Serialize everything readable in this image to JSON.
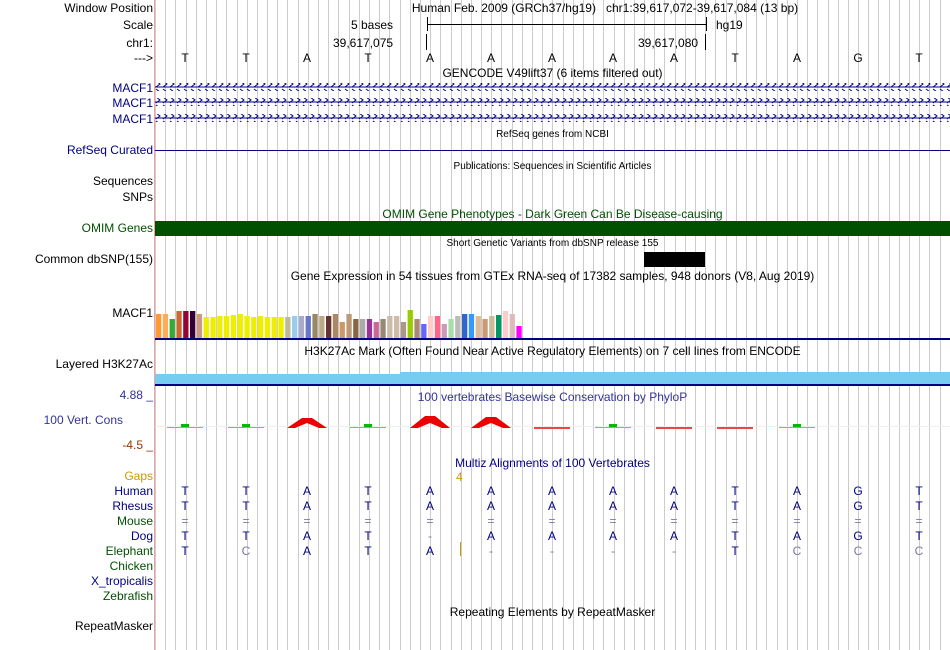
{
  "header": {
    "window_position_label": "Window Position",
    "scale_label": "Scale",
    "chr_label": "chr1:",
    "arrow_label": "--->",
    "assembly": "Human Feb. 2009 (GRCh37/hg19)",
    "position": "chr1:39,617,072-39,617,084 (13 bp)",
    "scale_text": "5 bases",
    "scale_assembly": "hg19",
    "coord_left": "39,617,075",
    "coord_right": "39,617,080",
    "bases": [
      "T",
      "T",
      "A",
      "T",
      "A",
      "A",
      "A",
      "A",
      "A",
      "T",
      "A",
      "G",
      "T"
    ]
  },
  "tracks": {
    "gencode": {
      "title": "GENCODE V49lift37 (6 items filtered out)",
      "rows": [
        "MACF1",
        "MACF1",
        "MACF1"
      ]
    },
    "refseq": {
      "title": "RefSeq genes from NCBI",
      "label": "RefSeq Curated"
    },
    "publications": {
      "title": "Publications: Sequences in Scientific Articles",
      "labels": [
        "Sequences",
        "SNPs"
      ]
    },
    "omim": {
      "title": "OMIM Gene Phenotypes - Dark Green Can Be Disease-causing",
      "label": "OMIM Genes",
      "color": "#005000"
    },
    "dbsnp": {
      "title": "Short Genetic Variants from dbSNP release 155",
      "label": "Common dbSNP(155)"
    },
    "gtex": {
      "title": "Gene Expression in 54 tissues from GTEx RNA-seq of 17382 samples, 948 donors (V8, Aug 2019)",
      "label": "MACF1",
      "bars": [
        {
          "v": 0.45,
          "c": "#ff9933"
        },
        {
          "v": 0.45,
          "c": "#ffaa55"
        },
        {
          "v": 0.35,
          "c": "#33aa33"
        },
        {
          "v": 0.5,
          "c": "#cc6633"
        },
        {
          "v": 0.5,
          "c": "#990033"
        },
        {
          "v": 0.5,
          "c": "#330033"
        },
        {
          "v": 0.45,
          "c": "#cc9988"
        },
        {
          "v": 0.38,
          "c": "#eeee00"
        },
        {
          "v": 0.38,
          "c": "#eeee00"
        },
        {
          "v": 0.4,
          "c": "#eeee00"
        },
        {
          "v": 0.4,
          "c": "#eeee00"
        },
        {
          "v": 0.42,
          "c": "#eeee00"
        },
        {
          "v": 0.45,
          "c": "#eeee00"
        },
        {
          "v": 0.4,
          "c": "#eeee00"
        },
        {
          "v": 0.38,
          "c": "#eeee00"
        },
        {
          "v": 0.4,
          "c": "#eeee00"
        },
        {
          "v": 0.38,
          "c": "#eeee00"
        },
        {
          "v": 0.38,
          "c": "#eeee00"
        },
        {
          "v": 0.38,
          "c": "#eeee00"
        },
        {
          "v": 0.38,
          "c": "#bbbb99"
        },
        {
          "v": 0.4,
          "c": "#99ccee"
        },
        {
          "v": 0.4,
          "c": "#aaaacc"
        },
        {
          "v": 0.4,
          "c": "#6677cc"
        },
        {
          "v": 0.45,
          "c": "#998866"
        },
        {
          "v": 0.4,
          "c": "#bbaa88"
        },
        {
          "v": 0.4,
          "c": "#663333"
        },
        {
          "v": 0.45,
          "c": "#aa8866"
        },
        {
          "v": 0.3,
          "c": "#cc9966"
        },
        {
          "v": 0.45,
          "c": "#bb9977"
        },
        {
          "v": 0.35,
          "c": "#886644"
        },
        {
          "v": 0.35,
          "c": "#aaaaaa"
        },
        {
          "v": 0.35,
          "c": "#993399"
        },
        {
          "v": 0.3,
          "c": "#cc6699"
        },
        {
          "v": 0.35,
          "c": "#998877"
        },
        {
          "v": 0.4,
          "c": "#ccbbaa"
        },
        {
          "v": 0.4,
          "c": "#ccbbaa"
        },
        {
          "v": 0.3,
          "c": "#aa9988"
        },
        {
          "v": 0.52,
          "c": "#99cc00"
        },
        {
          "v": 0.35,
          "c": "#aa8877"
        },
        {
          "v": 0.25,
          "c": "#6666ff"
        },
        {
          "v": 0.4,
          "c": "#ffcccc"
        },
        {
          "v": 0.4,
          "c": "#ff6688"
        },
        {
          "v": 0.25,
          "c": "#cc99bb"
        },
        {
          "v": 0.35,
          "c": "#aaddaa"
        },
        {
          "v": 0.4,
          "c": "#bbbbbb"
        },
        {
          "v": 0.45,
          "c": "#3366cc"
        },
        {
          "v": 0.45,
          "c": "#3399ff"
        },
        {
          "v": 0.4,
          "c": "#ddbb99"
        },
        {
          "v": 0.35,
          "c": "#cc9977"
        },
        {
          "v": 0.4,
          "c": "#ccbb99"
        },
        {
          "v": 0.42,
          "c": "#009966"
        },
        {
          "v": 0.5,
          "c": "#ffcccc"
        },
        {
          "v": 0.45,
          "c": "#ddbbbb"
        },
        {
          "v": 0.22,
          "c": "#ff00ff"
        }
      ]
    },
    "h3k27ac": {
      "title": "H3K27Ac Mark (Often Found Near Active Regulatory Elements) on 7 cell lines from ENCODE",
      "label": "Layered H3K27Ac",
      "color": "#77ccf2"
    },
    "phylop": {
      "title": "100 vertebrates Basewise Conservation by PhyloP",
      "label": "100 Vert. Cons",
      "max": "4.88 _",
      "min": "-4.5 _",
      "values": [
        0.1,
        0.15,
        0.8,
        0.1,
        1.0,
        0.9,
        0.05,
        0.4,
        0.05,
        -0.05,
        0.2,
        0.0,
        0.0
      ]
    },
    "multiz": {
      "title": "Multiz Alignments of 100 Vertebrates",
      "gap_label": "Gaps",
      "gap_count": "4",
      "species": [
        {
          "name": "Human",
          "seq": [
            "T",
            "T",
            "A",
            "T",
            "A",
            "A",
            "A",
            "A",
            "A",
            "T",
            "A",
            "G",
            "T"
          ]
        },
        {
          "name": "Rhesus",
          "seq": [
            "T",
            "T",
            "A",
            "T",
            "A",
            "A",
            "A",
            "A",
            "A",
            "T",
            "A",
            "G",
            "T"
          ]
        },
        {
          "name": "Mouse",
          "seq": [
            "=",
            "=",
            "=",
            "=",
            "=",
            "=",
            "=",
            "=",
            "=",
            "=",
            "=",
            "=",
            "="
          ]
        },
        {
          "name": "Dog",
          "seq": [
            "T",
            "T",
            "A",
            "T",
            "-",
            "A",
            "A",
            "A",
            "A",
            "T",
            "A",
            "G",
            "T"
          ]
        },
        {
          "name": "Elephant",
          "seq": [
            "T",
            "C",
            "A",
            "T",
            "A",
            "-",
            "-",
            "-",
            "-",
            "T",
            "C",
            "C",
            "C"
          ]
        },
        {
          "name": "Chicken",
          "seq": [
            "",
            "",
            "",
            "",
            "",
            "",
            "",
            "",
            "",
            "",
            "",
            "",
            ""
          ]
        },
        {
          "name": "X_tropicalis",
          "seq": [
            "",
            "",
            "",
            "",
            "",
            "",
            "",
            "",
            "",
            "",
            "",
            "",
            ""
          ]
        },
        {
          "name": "Zebrafish",
          "seq": [
            "",
            "",
            "",
            "",
            "",
            "",
            "",
            "",
            "",
            "",
            "",
            "",
            ""
          ]
        }
      ]
    },
    "repeatmasker": {
      "title": "Repeating Elements by RepeatMasker",
      "label": "RepeatMasker"
    }
  }
}
